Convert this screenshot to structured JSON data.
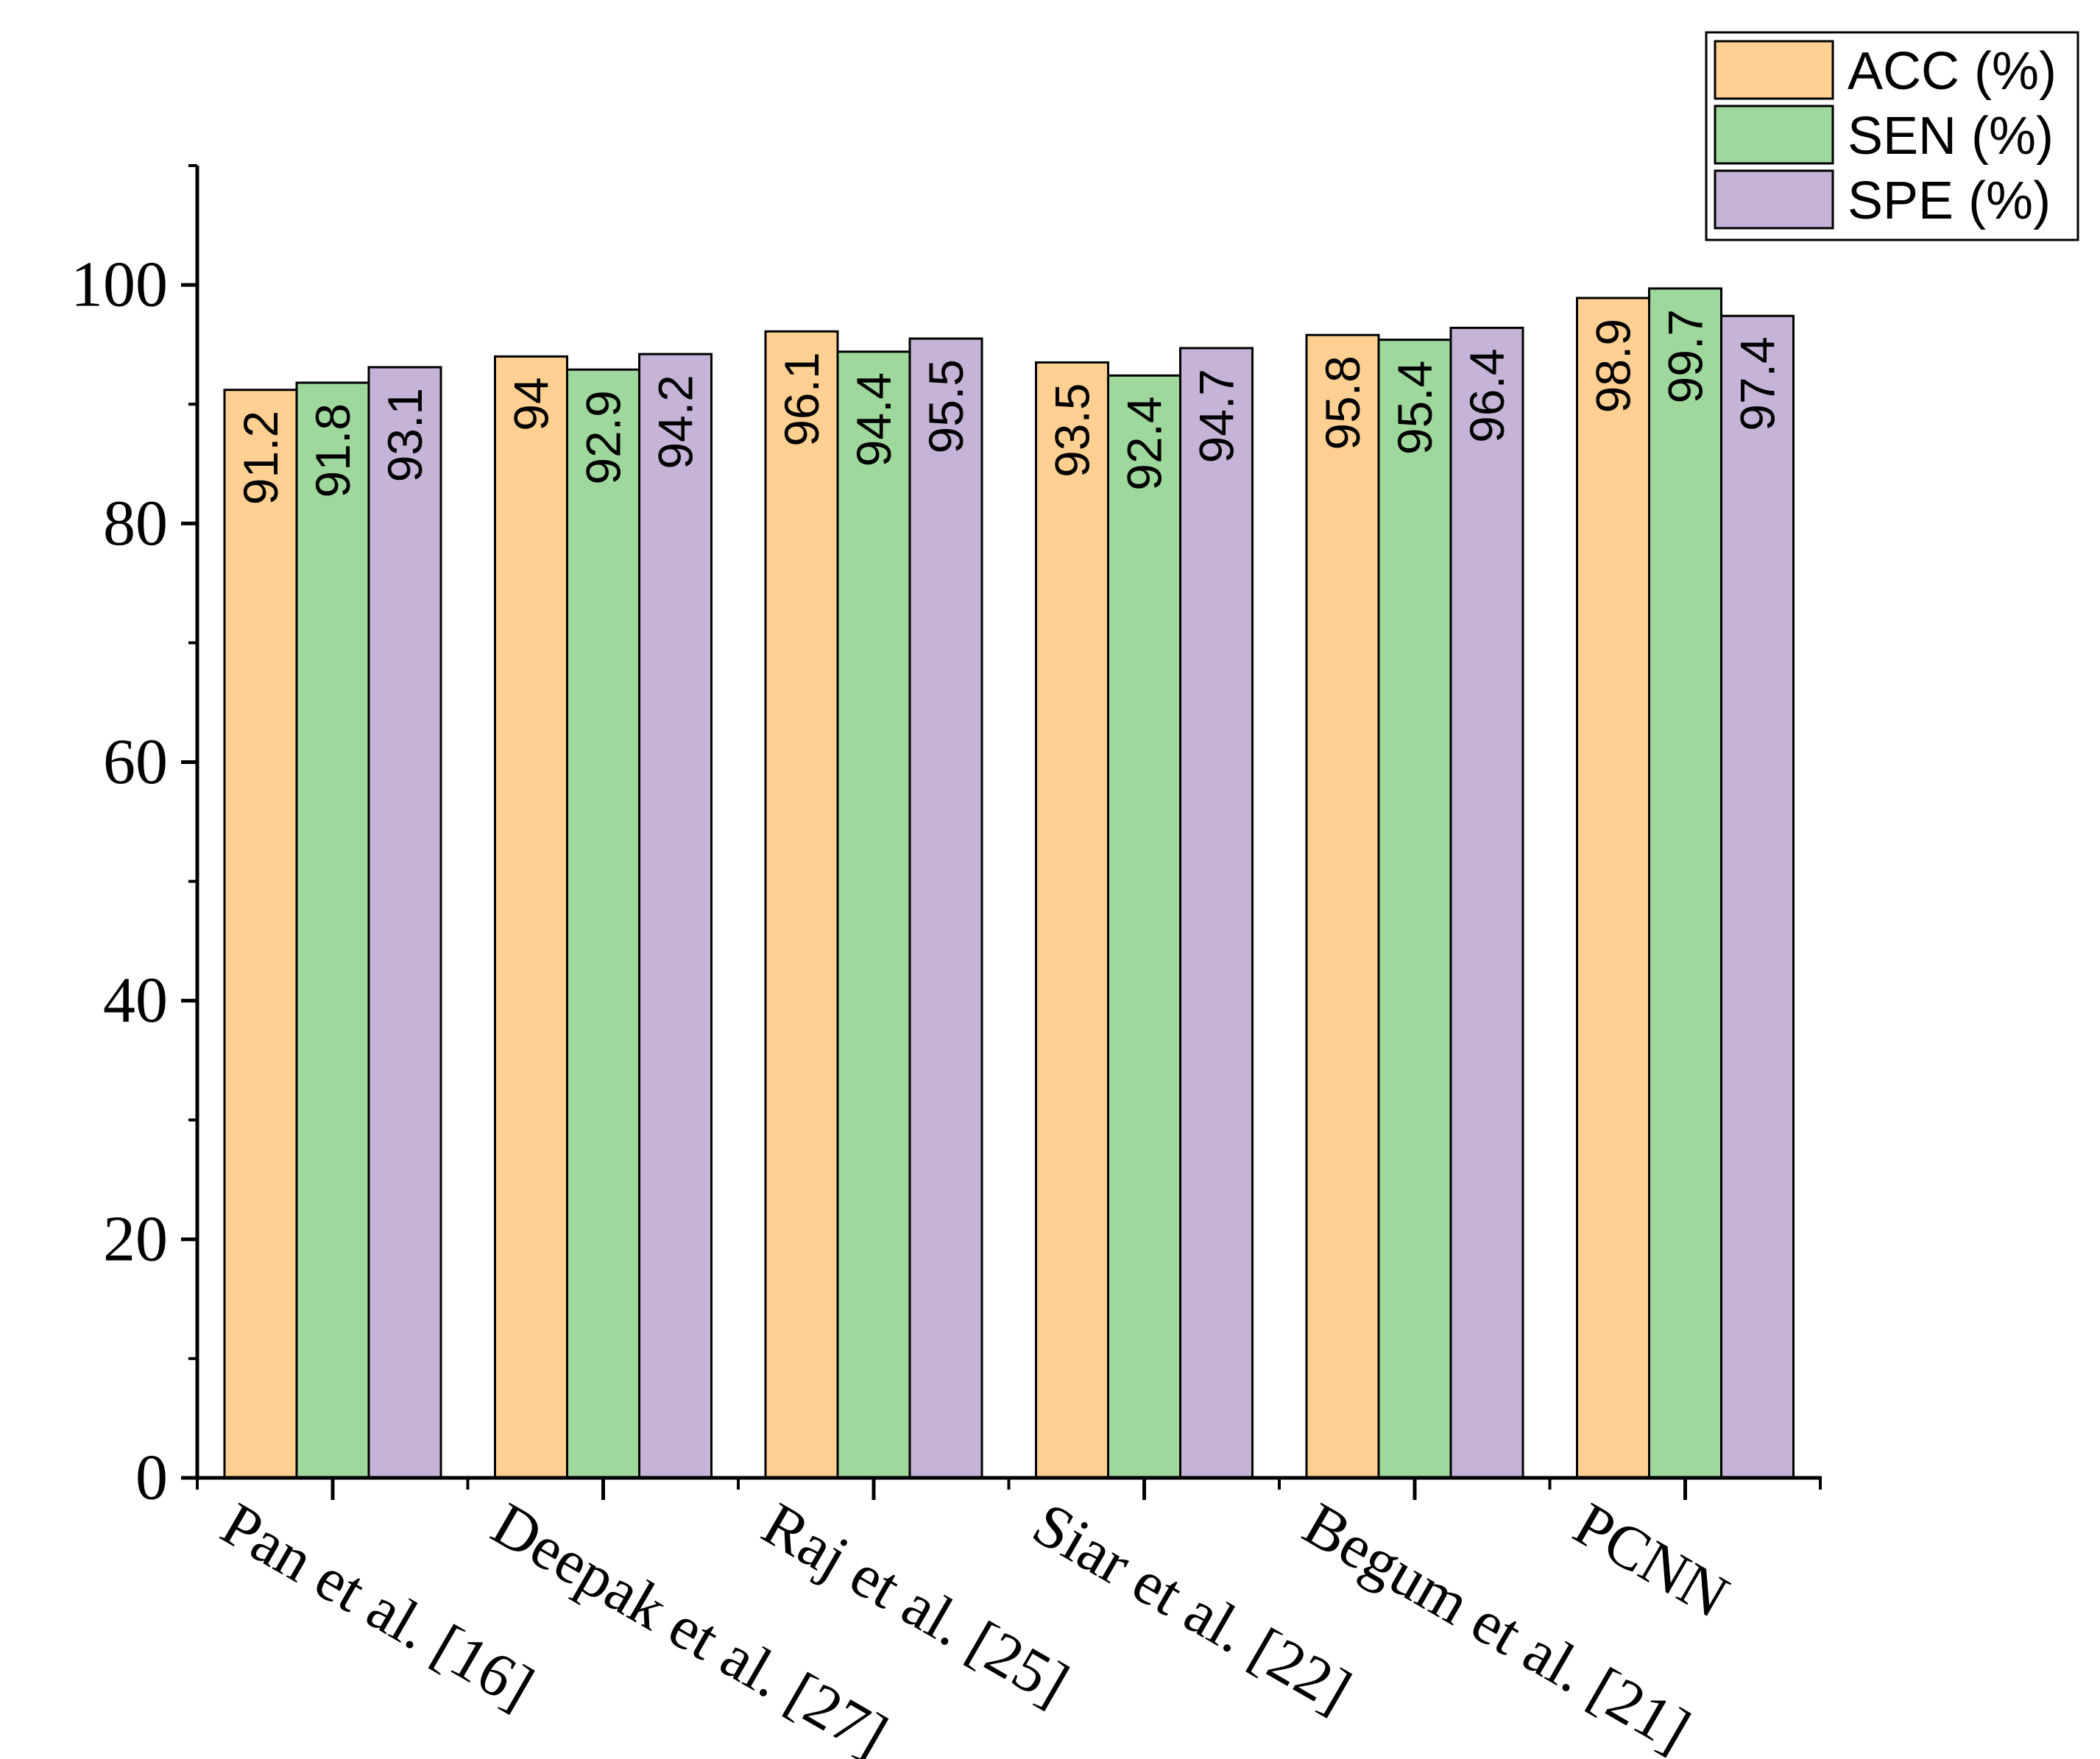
{
  "chart_data": {
    "type": "bar",
    "title": "",
    "xlabel": "",
    "ylabel": "",
    "ylim": [
      0,
      110
    ],
    "yticks": [
      0,
      20,
      40,
      60,
      80,
      100
    ],
    "categories": [
      "Pan et al. [16]",
      "Deepak et al. [27]",
      "Raj et al. [25]",
      "Siar et al. [22]",
      "Begum et al. [21]",
      "PCNN"
    ],
    "series": [
      {
        "name": "ACC (%)",
        "color": "#FFD092",
        "values": [
          91.2,
          94,
          96.1,
          93.5,
          95.8,
          98.9
        ]
      },
      {
        "name": "SEN (%)",
        "color": "#9FD89D",
        "values": [
          91.8,
          92.9,
          94.4,
          92.4,
          95.4,
          99.7
        ]
      },
      {
        "name": "SPE (%)",
        "color": "#C6B3D8",
        "values": [
          93.1,
          94.2,
          95.5,
          94.7,
          96.4,
          97.4
        ]
      }
    ],
    "data_labels": [
      [
        "91.2",
        "94",
        "96.1",
        "93.5",
        "95.8",
        "98.9"
      ],
      [
        "91.8",
        "92.9",
        "94.4",
        "92.4",
        "95.4",
        "99.7"
      ],
      [
        "93.1",
        "94.2",
        "95.5",
        "94.7",
        "96.4",
        "97.4"
      ]
    ],
    "legend": {
      "position": "top-right"
    },
    "grid": false
  }
}
